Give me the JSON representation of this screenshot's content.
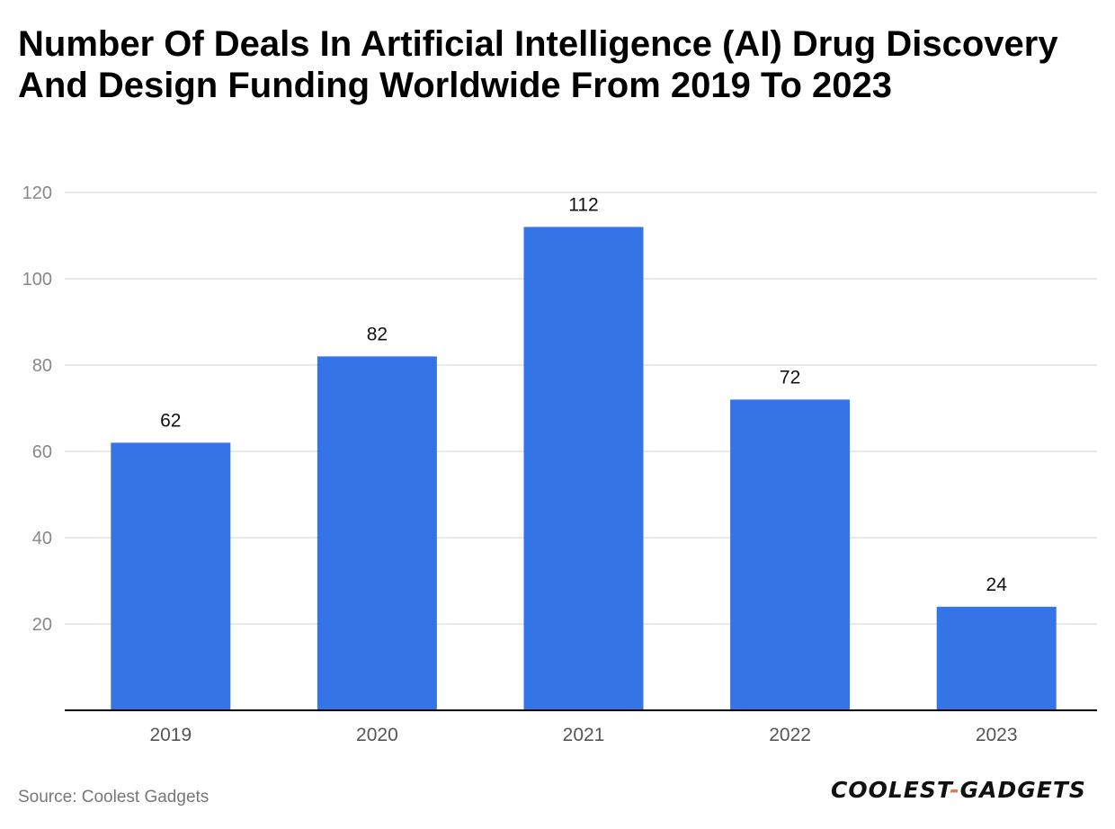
{
  "title": "Number Of Deals In Artificial Intelligence (AI) Drug Discovery And Design Funding Worldwide From 2019 To 2023",
  "source": "Source: Coolest Gadgets",
  "logo": {
    "part1": "COOLEST",
    "separator": "-",
    "part2": "GADGETS"
  },
  "colors": {
    "bar": "#3474e6",
    "grid": "#e3e3e3",
    "axis": "#000000",
    "tick_label": "#888888",
    "data_label": "#111111",
    "logo_accent": "#e8794a"
  },
  "chart_data": {
    "type": "bar",
    "title": "Number Of Deals In Artificial Intelligence (AI) Drug Discovery And Design Funding Worldwide From 2019 To 2023",
    "categories": [
      "2019",
      "2020",
      "2021",
      "2022",
      "2023"
    ],
    "values": [
      62,
      82,
      112,
      72,
      24
    ],
    "xlabel": "",
    "ylabel": "",
    "ylim": [
      0,
      120
    ],
    "yticks": [
      20,
      40,
      60,
      80,
      100,
      120
    ],
    "grid": true,
    "data_labels": true
  }
}
